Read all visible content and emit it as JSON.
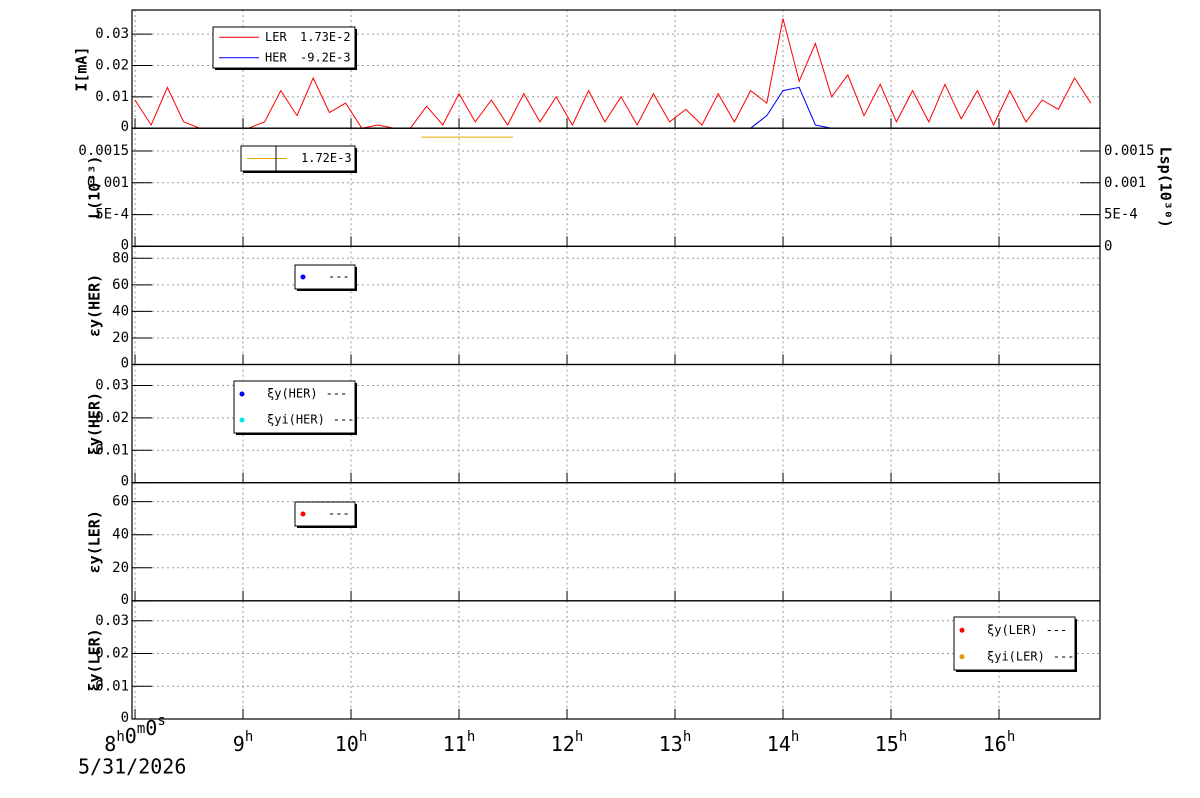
{
  "x_axis": {
    "xlim": [
      7.972,
      16.935
    ],
    "xticks": [
      {
        "value": 8,
        "label": "8h0m0s"
      },
      {
        "value": 9,
        "label": "9h"
      },
      {
        "value": 10,
        "label": "10h"
      },
      {
        "value": 11,
        "label": "11h"
      },
      {
        "value": 12,
        "label": "12h"
      },
      {
        "value": 13,
        "label": "13h"
      },
      {
        "value": 14,
        "label": "14h"
      },
      {
        "value": 15,
        "label": "15h"
      },
      {
        "value": 16,
        "label": "16h"
      }
    ],
    "date": "5/31/2026"
  },
  "chart_data": [
    {
      "type": "line",
      "ylabel": "I[mA]",
      "ylim": [
        0,
        0.0377
      ],
      "yticks": [
        0,
        0.01,
        0.02,
        0.03
      ],
      "grid": true,
      "series": [
        {
          "name": "LER",
          "label": "1.73E-2",
          "color": "#ff0000",
          "x": [
            8,
            8.15,
            8.3,
            8.45,
            8.6,
            8.75,
            8.9,
            9.05,
            9.2,
            9.35,
            9.5,
            9.65,
            9.8,
            9.95,
            10.1,
            10.25,
            10.4,
            10.55,
            10.7,
            10.85,
            11,
            11.15,
            11.3,
            11.45,
            11.6,
            11.75,
            11.9,
            12.05,
            12.2,
            12.35,
            12.5,
            12.65,
            12.8,
            12.95,
            13.1,
            13.25,
            13.4,
            13.55,
            13.7,
            13.85,
            14,
            14.15,
            14.3,
            14.45,
            14.6,
            14.75,
            14.9,
            15.05,
            15.2,
            15.35,
            15.5,
            15.65,
            15.8,
            15.95,
            16.1,
            16.25,
            16.4,
            16.55,
            16.7,
            16.85
          ],
          "values": [
            0.009,
            0.001,
            0.013,
            0.002,
            0,
            0,
            0,
            0,
            0.002,
            0.012,
            0.004,
            0.016,
            0.005,
            0.008,
            0,
            0.001,
            0,
            0,
            0.007,
            0.001,
            0.011,
            0.002,
            0.009,
            0.001,
            0.011,
            0.002,
            0.01,
            0.001,
            0.012,
            0.002,
            0.01,
            0.001,
            0.011,
            0.002,
            0.006,
            0.001,
            0.011,
            0.002,
            0.012,
            0.008,
            0.035,
            0.015,
            0.027,
            0.01,
            0.017,
            0.004,
            0.014,
            0.002,
            0.012,
            0.002,
            0.014,
            0.003,
            0.012,
            0.001,
            0.012,
            0.002,
            0.009,
            0.006,
            0.016,
            0.008
          ]
        },
        {
          "name": "HER",
          "label": "-9.2E-3",
          "color": "#0000ff",
          "x": [
            8,
            8.15,
            8.3,
            8.45,
            8.6,
            8.75,
            8.9,
            9.05,
            9.2,
            9.35,
            9.5,
            9.65,
            9.8,
            9.95,
            10.1,
            10.25,
            10.4,
            10.55,
            10.7,
            10.85,
            11,
            11.15,
            11.3,
            11.45,
            11.6,
            11.75,
            11.9,
            12.05,
            12.2,
            12.35,
            12.5,
            12.65,
            12.8,
            12.95,
            13.1,
            13.25,
            13.4,
            13.55,
            13.7,
            13.85,
            14,
            14.15,
            14.3,
            14.45,
            14.6,
            14.75,
            14.9,
            15.05,
            15.2,
            15.35,
            15.5,
            15.65,
            15.8,
            15.95,
            16.1,
            16.25,
            16.4,
            16.55,
            16.7,
            16.85
          ],
          "values": [
            0,
            0,
            0,
            0,
            0,
            0,
            0,
            0,
            0,
            0,
            0,
            0,
            0,
            0,
            0,
            0,
            0,
            0,
            0,
            0,
            0,
            0,
            0,
            0,
            0,
            0,
            0,
            0,
            0,
            0,
            0,
            0,
            0,
            0,
            0,
            0,
            0,
            0,
            0,
            0.004,
            0.012,
            0.013,
            0.001,
            0,
            0,
            0,
            0,
            0,
            0,
            0,
            0,
            0,
            0,
            0,
            0,
            0,
            0,
            0,
            0,
            0
          ]
        }
      ]
    },
    {
      "type": "line",
      "ylabel": "L(10³³)",
      "y2label": "Lsp(10³⁰)",
      "ylim": [
        0,
        0.00186
      ],
      "yticks": [
        0,
        {
          "value": 0.0005,
          "label": "5E-4"
        },
        0.001,
        0.0015
      ],
      "y2lim": [
        0,
        0.00186
      ],
      "y2ticks": [
        0,
        {
          "value": 0.0005,
          "label": "5E-4"
        },
        0.001,
        0.0015
      ],
      "grid": true,
      "series": [
        {
          "label": "1.72E-3",
          "color": "#e6a800",
          "x": [
            10.65,
            11.5
          ],
          "values": [
            0.00172,
            0.00172
          ]
        }
      ]
    },
    {
      "type": "scatter",
      "ylabel": "εy(HER)",
      "ylim": [
        0,
        89
      ],
      "yticks": [
        0,
        20,
        40,
        60,
        80
      ],
      "grid": true,
      "series": [
        {
          "label": "---",
          "color": "#0000ff",
          "x": [],
          "values": []
        }
      ]
    },
    {
      "type": "scatter",
      "ylabel": "ξy(HER)",
      "ylim": [
        0,
        0.0365
      ],
      "yticks": [
        0,
        0.01,
        0.02,
        0.03
      ],
      "grid": true,
      "series": [
        {
          "name": "ξy(HER)",
          "label": "---",
          "color": "#0000ff",
          "x": [],
          "values": []
        },
        {
          "name": "ξyi(HER)",
          "label": "---",
          "color": "#00e5ee",
          "x": [],
          "values": []
        }
      ]
    },
    {
      "type": "scatter",
      "ylabel": "εy(LER)",
      "ylim": [
        0,
        71.5
      ],
      "yticks": [
        0,
        20,
        40,
        60
      ],
      "grid": true,
      "series": [
        {
          "label": "---",
          "color": "#ff0000",
          "x": [],
          "values": []
        }
      ]
    },
    {
      "type": "scatter",
      "ylabel": "ξy(LER)",
      "ylim": [
        0,
        0.0361
      ],
      "yticks": [
        0,
        0.01,
        0.02,
        0.03
      ],
      "grid": true,
      "series": [
        {
          "name": "ξy(LER)",
          "label": "---",
          "color": "#ff0000",
          "x": [],
          "values": []
        },
        {
          "name": "ξyi(LER)",
          "label": "---",
          "color": "#e69500",
          "x": [],
          "values": []
        }
      ]
    }
  ]
}
